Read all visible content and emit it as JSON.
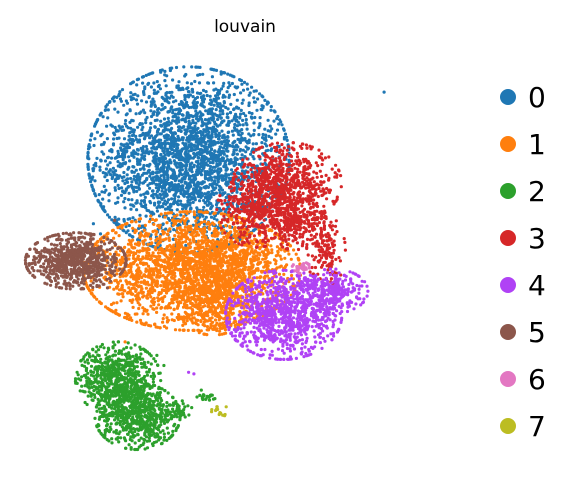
{
  "chart_data": {
    "type": "scatter",
    "title": "louvain",
    "xlabel": "",
    "ylabel": "",
    "axes_visible": false,
    "grid": false,
    "legend_position": "right",
    "legend_title": "",
    "series": [
      {
        "name": "0",
        "color": "#1f77b4",
        "clusters": [
          {
            "cx": 0.0,
            "cy": 3.2,
            "sx": 1.3,
            "sy": 1.25,
            "n": 2700
          }
        ],
        "outliers": [
          [
            5.55,
            5.2
          ],
          [
            -2.7,
            1.3
          ],
          [
            -2.5,
            1.0
          ]
        ]
      },
      {
        "name": "1",
        "color": "#ff7f0e",
        "clusters": [
          {
            "cx": 0.1,
            "cy": -0.1,
            "sx": 1.4,
            "sy": 0.8,
            "n": 2200
          },
          {
            "cx": 1.2,
            "cy": 0.4,
            "sx": 0.7,
            "sy": 0.5,
            "n": 300
          },
          {
            "cx": 0.7,
            "cy": -0.9,
            "sx": 0.5,
            "sy": 0.5,
            "n": 400
          }
        ],
        "outliers": [
          [
            -2.4,
            -0.3
          ],
          [
            -1.8,
            -2.2
          ]
        ]
      },
      {
        "name": "2",
        "color": "#2ca02c",
        "clusters": [
          {
            "cx": -2.0,
            "cy": -3.3,
            "sx": 0.55,
            "sy": 0.5,
            "n": 650
          },
          {
            "cx": -1.45,
            "cy": -4.4,
            "sx": 0.55,
            "sy": 0.45,
            "n": 650
          },
          {
            "cx": -0.3,
            "cy": -4.2,
            "sx": 0.18,
            "sy": 0.12,
            "n": 40
          },
          {
            "cx": 0.5,
            "cy": -3.8,
            "sx": 0.12,
            "sy": 0.1,
            "n": 25
          }
        ],
        "outliers": [
          [
            -0.7,
            -2.9
          ],
          [
            -0.9,
            -2.6
          ]
        ]
      },
      {
        "name": "3",
        "color": "#d62728",
        "clusters": [
          {
            "cx": 2.8,
            "cy": 2.5,
            "sx": 0.7,
            "sy": 0.55,
            "n": 700
          },
          {
            "cx": 1.9,
            "cy": 1.7,
            "sx": 0.5,
            "sy": 0.5,
            "n": 350
          },
          {
            "cx": 3.0,
            "cy": 1.3,
            "sx": 0.4,
            "sy": 0.35,
            "n": 250
          },
          {
            "cx": 3.9,
            "cy": 0.5,
            "sx": 0.25,
            "sy": 0.5,
            "n": 150
          }
        ],
        "outliers": []
      },
      {
        "name": "4",
        "color": "#b042f5",
        "clusters": [
          {
            "cx": 2.7,
            "cy": -1.4,
            "sx": 0.75,
            "sy": 0.6,
            "n": 1000
          },
          {
            "cx": 4.1,
            "cy": -0.7,
            "sx": 0.45,
            "sy": 0.3,
            "n": 300
          }
        ],
        "outliers": [
          [
            0.0,
            -3.1
          ],
          [
            0.15,
            -3.15
          ]
        ]
      },
      {
        "name": "5",
        "color": "#8c564b",
        "clusters": [
          {
            "cx": -3.2,
            "cy": 0.2,
            "sx": 0.65,
            "sy": 0.38,
            "n": 750
          }
        ],
        "outliers": [
          [
            -2.1,
            1.4
          ],
          [
            -2.3,
            -0.6
          ]
        ]
      },
      {
        "name": "6",
        "color": "#e377c2",
        "clusters": [
          {
            "cx": 3.2,
            "cy": 0.0,
            "sx": 0.12,
            "sy": 0.08,
            "n": 30
          }
        ],
        "outliers": []
      },
      {
        "name": "7",
        "color": "#bcbd22",
        "clusters": [
          {
            "cx": 0.9,
            "cy": -4.3,
            "sx": 0.12,
            "sy": 0.12,
            "n": 15
          }
        ],
        "outliers": []
      }
    ],
    "xlim": [
      -4.5,
      6.0
    ],
    "ylim": [
      -5.7,
      6.3
    ]
  }
}
